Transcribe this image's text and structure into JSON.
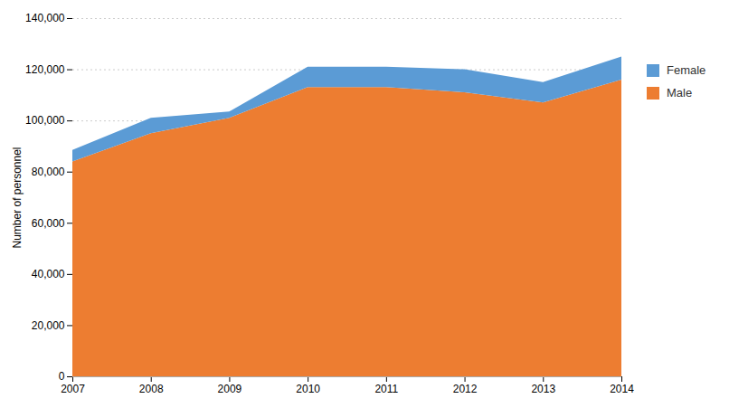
{
  "chart_data": {
    "type": "area",
    "stacked": true,
    "x": [
      2007,
      2008,
      2009,
      2010,
      2011,
      2012,
      2013,
      2014
    ],
    "series": [
      {
        "name": "Male",
        "color": "#ED7D31",
        "values": [
          84000,
          95000,
          101000,
          113000,
          113000,
          111000,
          107000,
          116000
        ]
      },
      {
        "name": "Female",
        "color": "#5B9BD5",
        "values": [
          4500,
          6000,
          2500,
          8000,
          8000,
          9000,
          8000,
          9000
        ]
      }
    ],
    "ylabel": "Number of personnel",
    "xlim": [
      2007,
      2014
    ],
    "xticks": [
      2007,
      2008,
      2009,
      2010,
      2011,
      2012,
      2013,
      2014
    ],
    "ylim": [
      0,
      140000
    ],
    "yticks": [
      0,
      {
        "value": 20000,
        "label": "20,000"
      },
      {
        "value": 40000,
        "label": "40,000"
      },
      {
        "value": 60000,
        "label": "60,000"
      },
      {
        "value": 80000,
        "label": "80,000"
      },
      {
        "value": 100000,
        "label": "100,000"
      },
      {
        "value": 120000,
        "label": "120,000"
      },
      {
        "value": 140000,
        "label": "140,000"
      }
    ],
    "grid": true,
    "legend": "right"
  }
}
